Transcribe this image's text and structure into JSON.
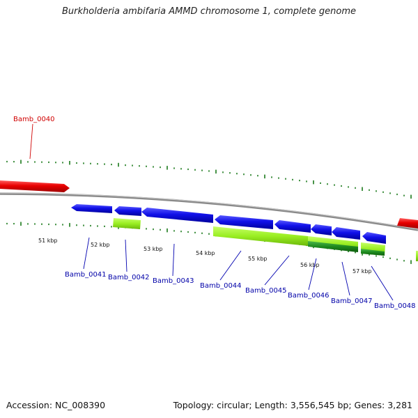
{
  "header": {
    "title": "Burkholderia ambifaria AMMD chromosome 1, complete genome"
  },
  "footer": {
    "accession": "Accession: NC_008390",
    "summary": "Topology: circular; Length: 3,556,545 bp; Genes: 3,281"
  },
  "colors": {
    "forward_gene": "#e80000",
    "reverse_gene": "#0000dd",
    "feature_light": "#99ee22",
    "feature_dark": "#1d8a1d",
    "backbone": "#8a8a8a",
    "ticks": "#1a7a1a"
  },
  "scale": {
    "kbp_labels": [
      "51 kbp",
      "52 kbp",
      "53 kbp",
      "54 kbp",
      "55 kbp",
      "56 kbp",
      "57 kbp"
    ]
  },
  "genes": [
    {
      "id": "Bamb_0040",
      "label": "Bamb_0040",
      "strand": "forward",
      "icon": "gene-arrow-right"
    },
    {
      "id": "Bamb_0041",
      "label": "Bamb_0041",
      "strand": "reverse",
      "icon": "gene-arrow-left"
    },
    {
      "id": "Bamb_0042",
      "label": "Bamb_0042",
      "strand": "reverse",
      "icon": "gene-arrow-left"
    },
    {
      "id": "Bamb_0043",
      "label": "Bamb_0043",
      "strand": "reverse",
      "icon": "gene-arrow-left"
    },
    {
      "id": "Bamb_0044",
      "label": "Bamb_0044",
      "strand": "reverse",
      "icon": "gene-arrow-left"
    },
    {
      "id": "Bamb_0045",
      "label": "Bamb_0045",
      "strand": "reverse",
      "icon": "gene-arrow-left"
    },
    {
      "id": "Bamb_0046",
      "label": "Bamb_0046",
      "strand": "reverse",
      "icon": "gene-arrow-left"
    },
    {
      "id": "Bamb_0047",
      "label": "Bamb_0047",
      "strand": "reverse",
      "icon": "gene-arrow-left"
    },
    {
      "id": "Bamb_0048",
      "label": "Bamb_0048",
      "strand": "reverse",
      "icon": "gene-arrow-left"
    }
  ]
}
